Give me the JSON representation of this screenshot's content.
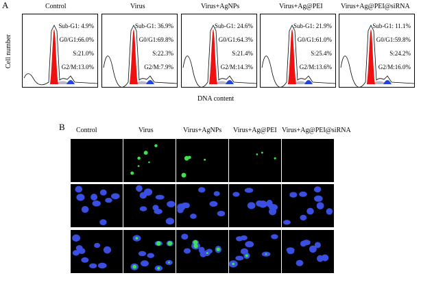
{
  "panel_a": {
    "label": "A",
    "y_axis_label": "Cell number",
    "x_axis_label": "DNA content",
    "groups": [
      {
        "title": "Control",
        "stats": [
          "Sub-G1: 4.9%",
          "G0/G1:66.0%",
          "S:21.0%",
          "G2/M:13.0%"
        ]
      },
      {
        "title": "Virus",
        "stats": [
          "Sub-G1: 36.9%",
          "G0/G1:69.8%",
          "S:22.3%",
          "G2/M:7.9%"
        ]
      },
      {
        "title": "Virus+AgNPs",
        "stats": [
          "Sub-G1: 24.6%",
          "G0/G1:64.3%",
          "S:21.4%",
          "G2/M:14.3%"
        ]
      },
      {
        "title": "Virus+Ag@PEI",
        "stats": [
          "Sub-G1: 21.9%",
          "G0/G1:61.0%",
          "S:25.4%",
          "G2/M:13.6%"
        ]
      },
      {
        "title": "Virus+Ag@PEI@siRNA",
        "stats": [
          "Sub-G1: 11.1%",
          "G0/G1:59.8%",
          "S:24.2%",
          "G2/M:16.0%"
        ]
      }
    ],
    "colors": {
      "g1_peak": "#ee1111",
      "g2_peak": "#2244dd",
      "s_fill": "#b8b8c8",
      "line": "#000000"
    }
  },
  "panel_b": {
    "label": "B",
    "columns": [
      "Control",
      "Virus",
      "Virus+AgNPs",
      "Virus+Ag@PEI",
      "Virus+Ag@PEI@siRNA"
    ],
    "colors": {
      "background": "#000000",
      "nucleus": "#3a4fe0",
      "virus": "#39e64a"
    }
  }
}
